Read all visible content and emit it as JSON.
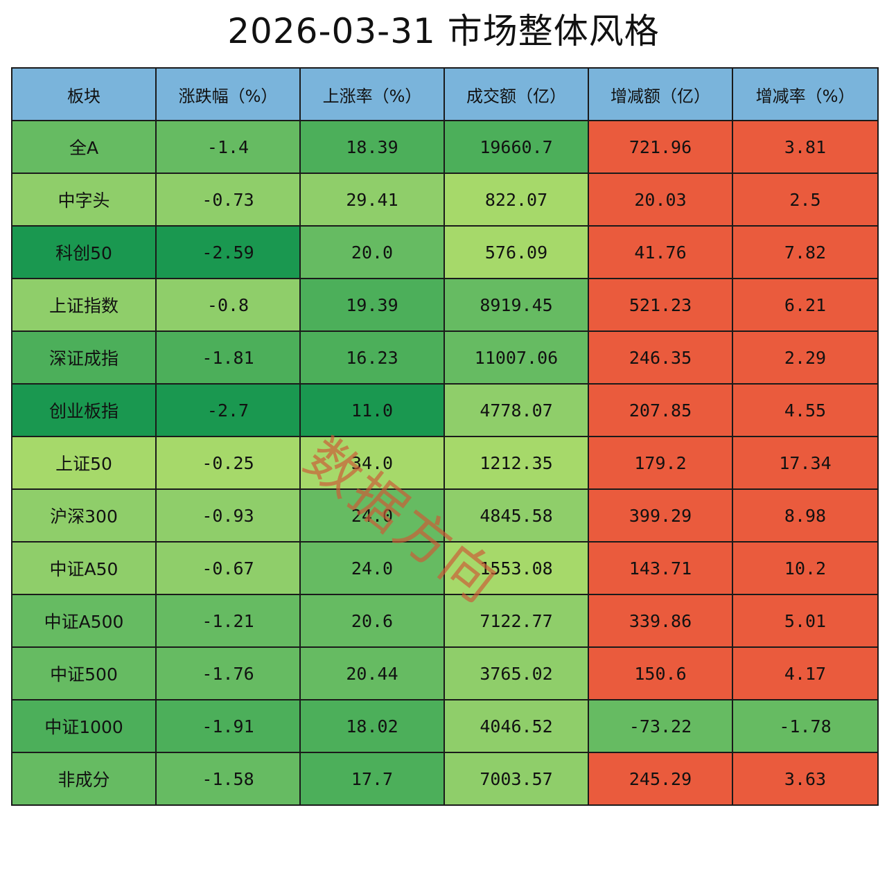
{
  "title": "2026-03-31 市场整体风格",
  "watermark": "数据方向",
  "colors": {
    "header_bg": "#7ab4db",
    "red": "#ea5b3d",
    "green_scale": [
      "#1a9850",
      "#4caf5a",
      "#66bb62",
      "#8fce6a",
      "#a6d96a"
    ]
  },
  "chart_data": {
    "type": "table",
    "title": "2026-03-31 市场整体风格",
    "columns": [
      "板块",
      "涨跌幅（%）",
      "上涨率（%）",
      "成交额（亿）",
      "增减额（亿）",
      "增减率（%）"
    ],
    "rows": [
      {
        "name": "全A",
        "change_pct": "-1.4",
        "up_ratio": "18.39",
        "turnover": "19660.7",
        "delta": "721.96",
        "delta_pct": "3.81"
      },
      {
        "name": "中字头",
        "change_pct": "-0.73",
        "up_ratio": "29.41",
        "turnover": "822.07",
        "delta": "20.03",
        "delta_pct": "2.5"
      },
      {
        "name": "科创50",
        "change_pct": "-2.59",
        "up_ratio": "20.0",
        "turnover": "576.09",
        "delta": "41.76",
        "delta_pct": "7.82"
      },
      {
        "name": "上证指数",
        "change_pct": "-0.8",
        "up_ratio": "19.39",
        "turnover": "8919.45",
        "delta": "521.23",
        "delta_pct": "6.21"
      },
      {
        "name": "深证成指",
        "change_pct": "-1.81",
        "up_ratio": "16.23",
        "turnover": "11007.06",
        "delta": "246.35",
        "delta_pct": "2.29"
      },
      {
        "name": "创业板指",
        "change_pct": "-2.7",
        "up_ratio": "11.0",
        "turnover": "4778.07",
        "delta": "207.85",
        "delta_pct": "4.55"
      },
      {
        "name": "上证50",
        "change_pct": "-0.25",
        "up_ratio": "34.0",
        "turnover": "1212.35",
        "delta": "179.2",
        "delta_pct": "17.34"
      },
      {
        "name": "沪深300",
        "change_pct": "-0.93",
        "up_ratio": "24.0",
        "turnover": "4845.58",
        "delta": "399.29",
        "delta_pct": "8.98"
      },
      {
        "name": "中证A50",
        "change_pct": "-0.67",
        "up_ratio": "24.0",
        "turnover": "1553.08",
        "delta": "143.71",
        "delta_pct": "10.2"
      },
      {
        "name": "中证A500",
        "change_pct": "-1.21",
        "up_ratio": "20.6",
        "turnover": "7122.77",
        "delta": "339.86",
        "delta_pct": "5.01"
      },
      {
        "name": "中证500",
        "change_pct": "-1.76",
        "up_ratio": "20.44",
        "turnover": "3765.02",
        "delta": "150.6",
        "delta_pct": "4.17"
      },
      {
        "name": "中证1000",
        "change_pct": "-1.91",
        "up_ratio": "18.02",
        "turnover": "4046.52",
        "delta": "-73.22",
        "delta_pct": "-1.78"
      },
      {
        "name": "非成分",
        "change_pct": "-1.58",
        "up_ratio": "17.7",
        "turnover": "7003.57",
        "delta": "245.29",
        "delta_pct": "3.63"
      }
    ]
  }
}
